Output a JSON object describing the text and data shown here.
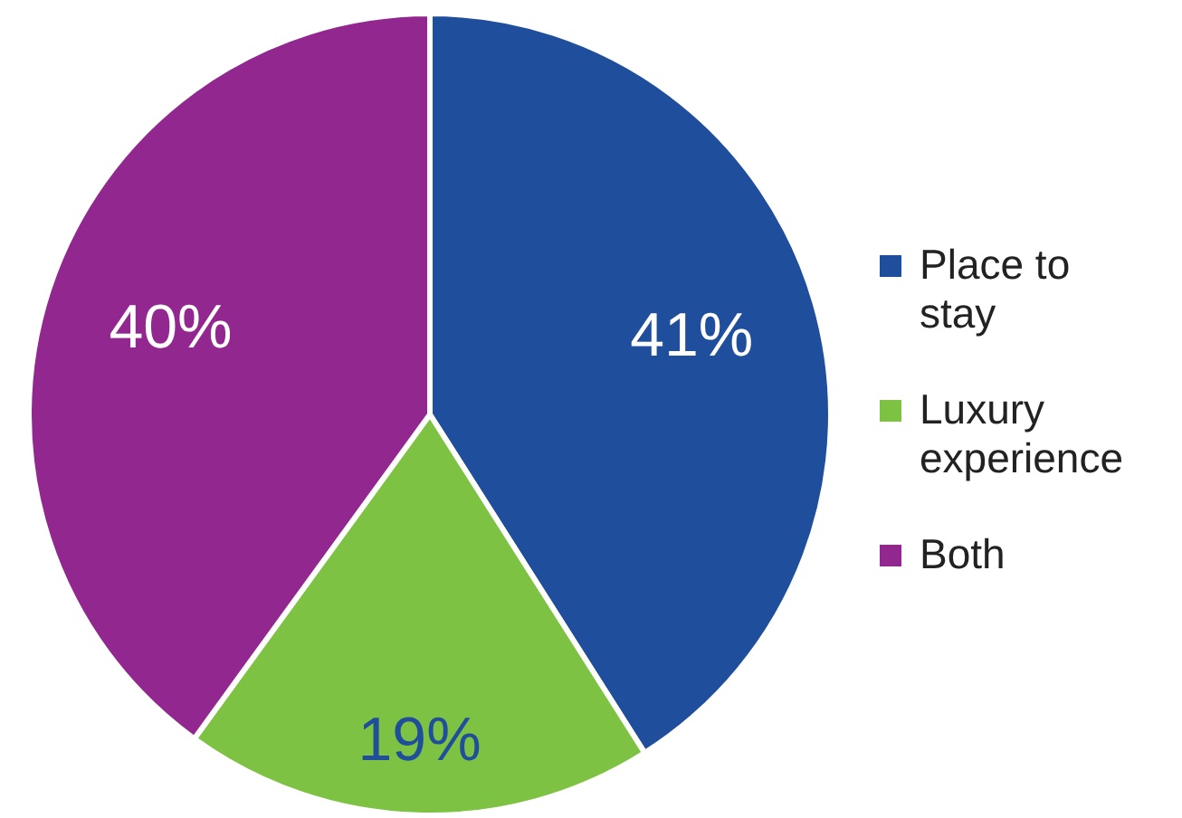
{
  "chart_data": {
    "type": "pie",
    "categories": [
      "Place to stay",
      "Luxury experience",
      "Both"
    ],
    "values": [
      41,
      19,
      40
    ],
    "colors": [
      "#1f4e9c",
      "#7dc242",
      "#91278f"
    ],
    "value_labels": [
      "41%",
      "19%",
      "40%"
    ],
    "legend": "right"
  }
}
